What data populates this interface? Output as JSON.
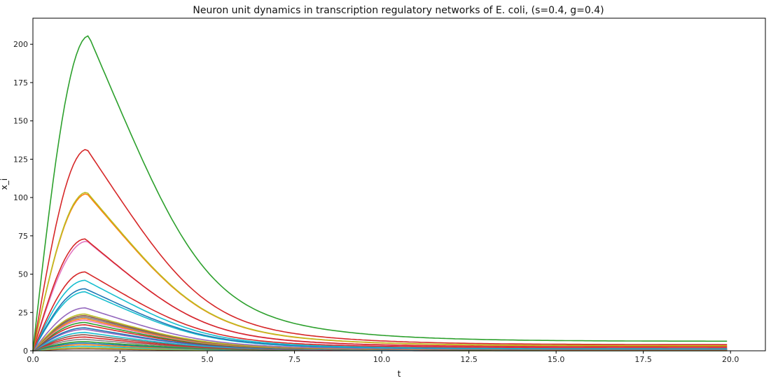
{
  "chart_data": {
    "type": "line",
    "title": "Neuron unit dynamics in transcription regulatory networks of E. coli, (s=0.4, g=0.4)",
    "xlabel": "t",
    "ylabel": "x_i",
    "xlim": [
      0.0,
      21.0
    ],
    "ylim": [
      0,
      217
    ],
    "x_ticks": [
      0.0,
      2.5,
      5.0,
      7.5,
      10.0,
      12.5,
      15.0,
      17.5,
      20.0
    ],
    "x_tick_labels": [
      "0.0",
      "2.5",
      "5.0",
      "7.5",
      "10.0",
      "12.5",
      "15.0",
      "17.5",
      "20.0"
    ],
    "y_ticks": [
      0,
      25,
      50,
      75,
      100,
      125,
      150,
      175,
      200
    ],
    "y_tick_labels": [
      "0",
      "25",
      "50",
      "75",
      "100",
      "125",
      "150",
      "175",
      "200"
    ],
    "grid": false,
    "legend": "none",
    "x_end": 19.9,
    "series": [
      {
        "peak": 205.5,
        "t_peak": 1.6,
        "final": 6.2,
        "color": "#2ca02c"
      },
      {
        "peak": 131.5,
        "t_peak": 1.55,
        "final": 4.0,
        "color": "#d62728"
      },
      {
        "peak": 103.5,
        "t_peak": 1.55,
        "final": 3.3,
        "color": "#bcbd22"
      },
      {
        "peak": 102.5,
        "t_peak": 1.55,
        "final": 3.2,
        "color": "#ff7f0e"
      },
      {
        "peak": 73.0,
        "t_peak": 1.5,
        "final": 2.6,
        "color": "#d62728"
      },
      {
        "peak": 71.5,
        "t_peak": 1.55,
        "final": 2.4,
        "color": "#e377c2"
      },
      {
        "peak": 51.5,
        "t_peak": 1.5,
        "final": 2.0,
        "color": "#d62728"
      },
      {
        "peak": 46.0,
        "t_peak": 1.5,
        "final": 1.5,
        "color": "#17becf"
      },
      {
        "peak": 40.5,
        "t_peak": 1.5,
        "final": 1.3,
        "color": "#1f77b4"
      },
      {
        "peak": 38.5,
        "t_peak": 1.5,
        "final": 1.2,
        "color": "#17becf"
      },
      {
        "peak": 28.0,
        "t_peak": 1.5,
        "final": 1.0,
        "color": "#9467bd"
      },
      {
        "peak": 24.0,
        "t_peak": 1.5,
        "final": 0.9,
        "color": "#bcbd22"
      },
      {
        "peak": 23.0,
        "t_peak": 1.5,
        "final": 0.8,
        "color": "#8c564b"
      },
      {
        "peak": 22.0,
        "t_peak": 1.5,
        "final": 0.8,
        "color": "#7f7f7f"
      },
      {
        "peak": 21.0,
        "t_peak": 1.5,
        "final": 0.7,
        "color": "#ff7f0e"
      },
      {
        "peak": 20.0,
        "t_peak": 1.5,
        "final": 0.7,
        "color": "#e377c2"
      },
      {
        "peak": 18.5,
        "t_peak": 1.5,
        "final": 0.6,
        "color": "#2ca02c"
      },
      {
        "peak": 17.0,
        "t_peak": 1.5,
        "final": 0.6,
        "color": "#d62728"
      },
      {
        "peak": 15.0,
        "t_peak": 1.5,
        "final": 0.5,
        "color": "#1f77b4"
      },
      {
        "peak": 14.0,
        "t_peak": 1.5,
        "final": 0.5,
        "color": "#9467bd"
      },
      {
        "peak": 12.0,
        "t_peak": 1.5,
        "final": 0.4,
        "color": "#17becf"
      },
      {
        "peak": 10.5,
        "t_peak": 1.5,
        "final": 0.4,
        "color": "#8c564b"
      },
      {
        "peak": 9.0,
        "t_peak": 1.5,
        "final": 0.3,
        "color": "#d62728"
      },
      {
        "peak": 7.5,
        "t_peak": 1.5,
        "final": 0.3,
        "color": "#7f7f7f"
      },
      {
        "peak": 6.0,
        "t_peak": 1.5,
        "final": 0.2,
        "color": "#2ca02c"
      },
      {
        "peak": 5.0,
        "t_peak": 1.5,
        "final": 0.2,
        "color": "#1f77b4"
      },
      {
        "peak": 4.0,
        "t_peak": 1.5,
        "final": 0.2,
        "color": "#ff7f0e"
      },
      {
        "peak": 3.0,
        "t_peak": 1.5,
        "final": 0.1,
        "color": "#17becf"
      },
      {
        "peak": 2.0,
        "t_peak": 1.5,
        "final": 0.1,
        "color": "#bcbd22"
      },
      {
        "peak": 1.2,
        "t_peak": 1.5,
        "final": 0.1,
        "color": "#8c564b"
      }
    ]
  }
}
